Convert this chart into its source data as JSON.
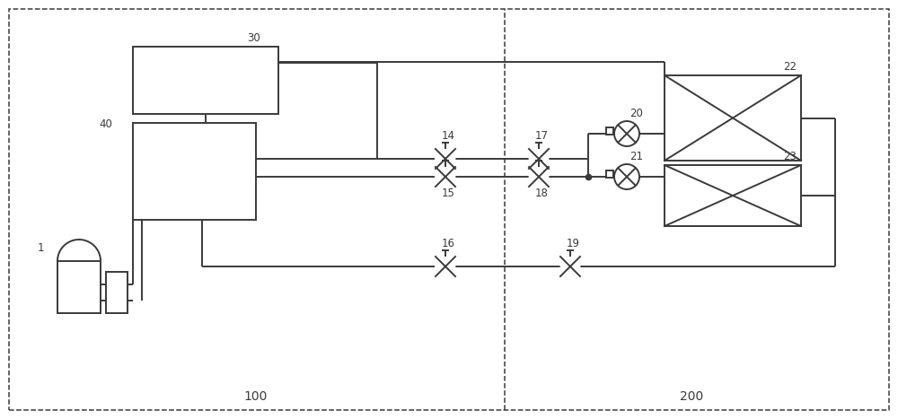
{
  "bg_color": "#ffffff",
  "line_color": "#3a3a3a",
  "lw": 1.4,
  "fig_width": 10.0,
  "fig_height": 4.67,
  "dpi": 100,
  "label_fontsize": 8.5,
  "section_label_fontsize": 10
}
